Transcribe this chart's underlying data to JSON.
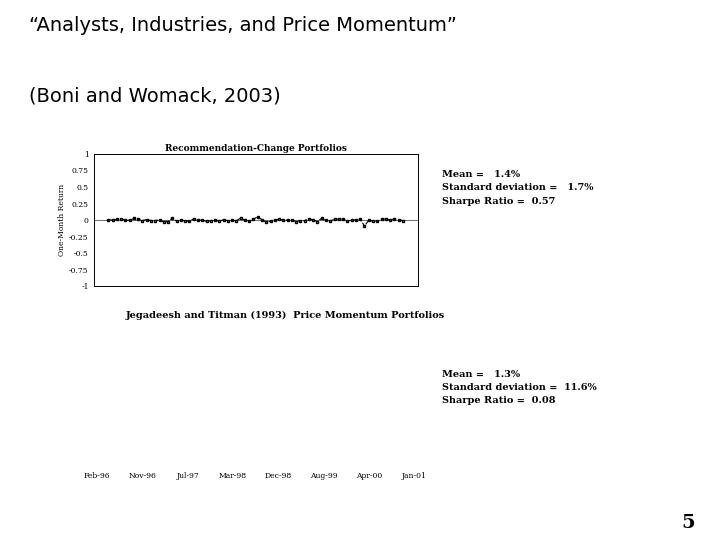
{
  "title_line1": "“Analysts, Industries, and Price Momentum”",
  "title_line2": "(Boni and Womack, 2003)",
  "title_fontsize": 14,
  "title_color": "#000000",
  "divider_color": "#000000",
  "background_color": "#ffffff",
  "chart1_title": "Recommendation-Change Portfolios",
  "chart1_ylabel": "One-Month Return",
  "chart1_ylim": [
    -1,
    1
  ],
  "chart1_yticks": [
    -1,
    -0.75,
    -0.5,
    -0.25,
    0,
    0.25,
    0.5,
    0.75,
    1
  ],
  "chart1_ytick_labels": [
    "-1",
    "-0.75",
    "-0.5",
    "-0.25",
    "0",
    "0.25",
    "0.5",
    "0.75",
    "1"
  ],
  "x_tick_labels": [
    "Feb-96",
    "Nov-96",
    "Jul-97",
    "Mar-98",
    "Dec-98",
    "Aug-99",
    "Apr-00",
    "Jan-01"
  ],
  "chart1_stats_text": "Mean =   1.4%\nStandard deviation =   1.7%\nSharpe Ratio =  0.57",
  "chart2_label": "Jegadeesh and Titman (1993)  Price Momentum Portfolios",
  "chart2_stats_text": "Mean =   1.3%\nStandard deviation =  11.6%\nSharpe Ratio =  0.08",
  "page_number": "5",
  "line_color": "#000000",
  "line_style": "--",
  "marker_style": "s",
  "marker_size": 2,
  "linewidth": 0.8
}
